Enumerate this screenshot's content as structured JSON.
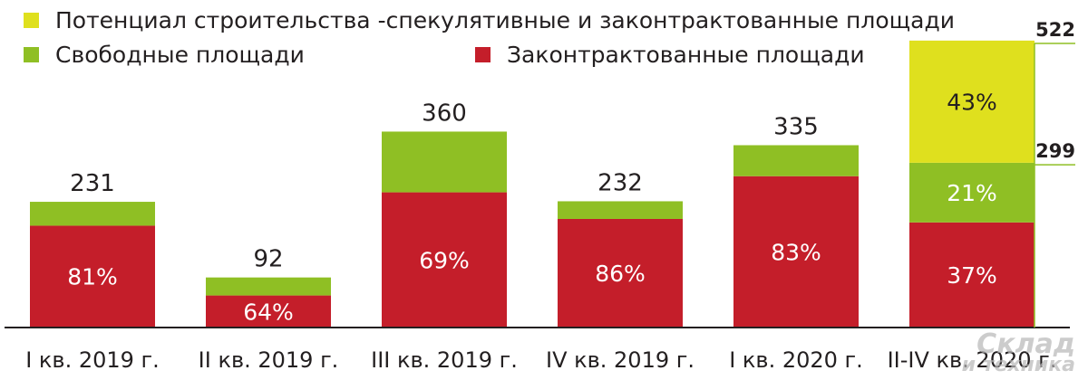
{
  "chart_data": {
    "type": "bar",
    "stacked": true,
    "categories": [
      "I кв. 2019 г.",
      "II кв. 2019 г.",
      "III кв. 2019 г.",
      "IV кв. 2019 г.",
      "I кв. 2020 г.",
      "II-IV кв. 2020 г."
    ],
    "totals": [
      231,
      92,
      360,
      232,
      335,
      522
    ],
    "series": [
      {
        "name": "Законтрактованные площади",
        "color": "#c41e2a",
        "shares": [
          81,
          64,
          69,
          86,
          83,
          37
        ],
        "labels": [
          "81%",
          "64%",
          "69%",
          "86%",
          "83%",
          "37%"
        ]
      },
      {
        "name": "Свободные площади",
        "color": "#8fbf24",
        "shares": [
          19,
          36,
          31,
          14,
          17,
          21
        ],
        "labels": [
          "",
          "",
          "",
          "",
          "",
          "21%"
        ]
      },
      {
        "name": "Потенциал строительства -спекулятивные и законтрактованные площади",
        "color": "#dfe01e",
        "shares": [
          0,
          0,
          0,
          0,
          0,
          43
        ],
        "labels": [
          "",
          "",
          "",
          "",
          "",
          "43%"
        ]
      }
    ],
    "total_labels": [
      "231",
      "92",
      "360",
      "232",
      "335",
      ""
    ],
    "side_markers": [
      {
        "value": 522,
        "label": "522"
      },
      {
        "value": 299,
        "label": "299"
      }
    ],
    "ylim": [
      0,
      522
    ],
    "legend_position": "top",
    "grid": false
  },
  "watermark": {
    "line1": "Склад",
    "line2": "и техника"
  }
}
